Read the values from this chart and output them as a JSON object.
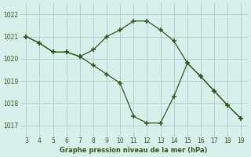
{
  "x": [
    3,
    4,
    5,
    6,
    7,
    8,
    9,
    10,
    11,
    12,
    13,
    14,
    15,
    16,
    17,
    18,
    19
  ],
  "y_upper": [
    1021.0,
    1020.7,
    1020.3,
    1020.3,
    1020.1,
    1020.4,
    1021.0,
    1021.3,
    1021.7,
    1021.7,
    1021.3,
    1020.8,
    1019.8,
    1019.2,
    1018.55,
    1017.9,
    1017.3
  ],
  "y_lower": [
    1021.0,
    1020.7,
    1020.3,
    1020.3,
    1020.1,
    1019.7,
    1019.3,
    1018.9,
    1017.4,
    1017.1,
    1017.1,
    1018.3,
    1019.8,
    1019.2,
    1018.55,
    1017.9,
    1017.3
  ],
  "line_color": "#2d5a1b",
  "bg_color": "#d8f0ec",
  "grid_color": "#aaccc8",
  "xlabel": "Graphe pression niveau de la mer (hPa)",
  "ylim": [
    1016.5,
    1022.5
  ],
  "xlim": [
    2.5,
    19.5
  ],
  "yticks": [
    1017,
    1018,
    1019,
    1020,
    1021,
    1022
  ],
  "xticks": [
    3,
    4,
    5,
    6,
    7,
    8,
    9,
    10,
    11,
    12,
    13,
    14,
    15,
    16,
    17,
    18,
    19
  ]
}
